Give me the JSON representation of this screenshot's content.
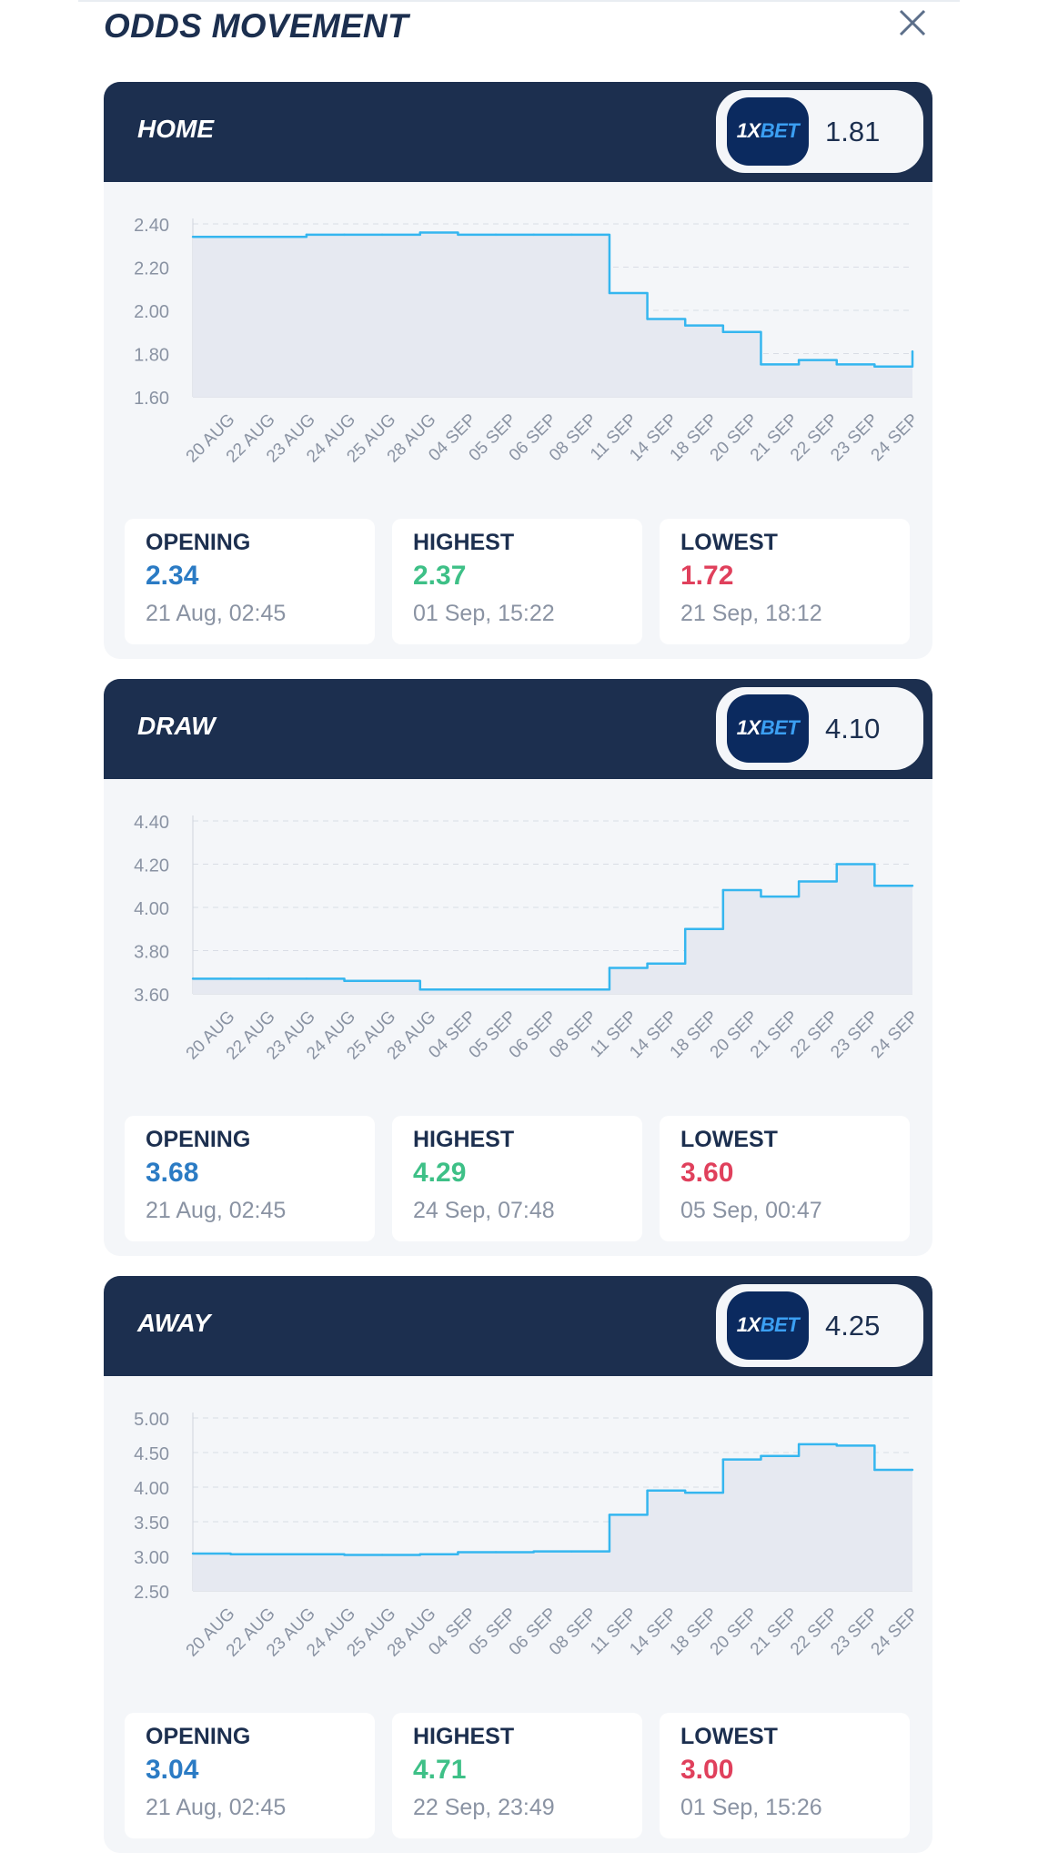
{
  "header": {
    "title": "ODDS MOVEMENT",
    "close_icon": "close-icon"
  },
  "colors": {
    "navy": "#1c2f4f",
    "line": "#35b6ef",
    "area": "#e6e9f1",
    "opening": "#2b7bc4",
    "highest": "#3ec087",
    "lowest": "#e0405c"
  },
  "x_labels": [
    "20 AUG",
    "22 AUG",
    "23 AUG",
    "24 AUG",
    "25 AUG",
    "28 AUG",
    "04 SEP",
    "05 SEP",
    "06 SEP",
    "08 SEP",
    "11 SEP",
    "14 SEP",
    "18 SEP",
    "20 SEP",
    "21 SEP",
    "22 SEP",
    "23 SEP",
    "24 SEP"
  ],
  "cards": [
    {
      "label": "HOME",
      "bookmaker_logo": "1XBET",
      "current_odds": "1.81",
      "chart_data": {
        "type": "line",
        "ylim": [
          1.6,
          2.4
        ],
        "yticks": [
          "2.40",
          "2.20",
          "2.00",
          "1.80",
          "1.60"
        ],
        "values": [
          2.34,
          2.34,
          2.34,
          2.35,
          2.35,
          2.35,
          2.36,
          2.35,
          2.35,
          2.35,
          2.35,
          2.08,
          1.96,
          1.93,
          1.9,
          1.75,
          1.77,
          1.75,
          1.74,
          1.81
        ]
      },
      "stats": [
        {
          "label": "OPENING",
          "value": "2.34",
          "time": "21 Aug, 02:45"
        },
        {
          "label": "HIGHEST",
          "value": "2.37",
          "time": "01 Sep, 15:22"
        },
        {
          "label": "LOWEST",
          "value": "1.72",
          "time": "21 Sep, 18:12"
        }
      ]
    },
    {
      "label": "DRAW",
      "bookmaker_logo": "1XBET",
      "current_odds": "4.10",
      "chart_data": {
        "type": "line",
        "ylim": [
          3.6,
          4.4
        ],
        "yticks": [
          "4.40",
          "4.20",
          "4.00",
          "3.80",
          "3.60"
        ],
        "values": [
          3.67,
          3.67,
          3.67,
          3.67,
          3.66,
          3.66,
          3.62,
          3.62,
          3.62,
          3.62,
          3.62,
          3.72,
          3.74,
          3.9,
          4.08,
          4.05,
          4.12,
          4.2,
          4.1,
          4.1
        ]
      },
      "stats": [
        {
          "label": "OPENING",
          "value": "3.68",
          "time": "21 Aug, 02:45"
        },
        {
          "label": "HIGHEST",
          "value": "4.29",
          "time": "24 Sep, 07:48"
        },
        {
          "label": "LOWEST",
          "value": "3.60",
          "time": "05 Sep, 00:47"
        }
      ]
    },
    {
      "label": "AWAY",
      "bookmaker_logo": "1XBET",
      "current_odds": "4.25",
      "chart_data": {
        "type": "line",
        "ylim": [
          2.5,
          5.0
        ],
        "yticks": [
          "5.00",
          "4.50",
          "4.00",
          "3.50",
          "3.00",
          "2.50"
        ],
        "values": [
          3.04,
          3.03,
          3.03,
          3.03,
          3.02,
          3.02,
          3.03,
          3.06,
          3.06,
          3.07,
          3.07,
          3.6,
          3.95,
          3.92,
          4.4,
          4.45,
          4.62,
          4.6,
          4.25,
          4.25
        ]
      },
      "stats": [
        {
          "label": "OPENING",
          "value": "3.04",
          "time": "21 Aug, 02:45"
        },
        {
          "label": "HIGHEST",
          "value": "4.71",
          "time": "22 Sep, 23:49"
        },
        {
          "label": "LOWEST",
          "value": "3.00",
          "time": "01 Sep, 15:26"
        }
      ]
    }
  ]
}
